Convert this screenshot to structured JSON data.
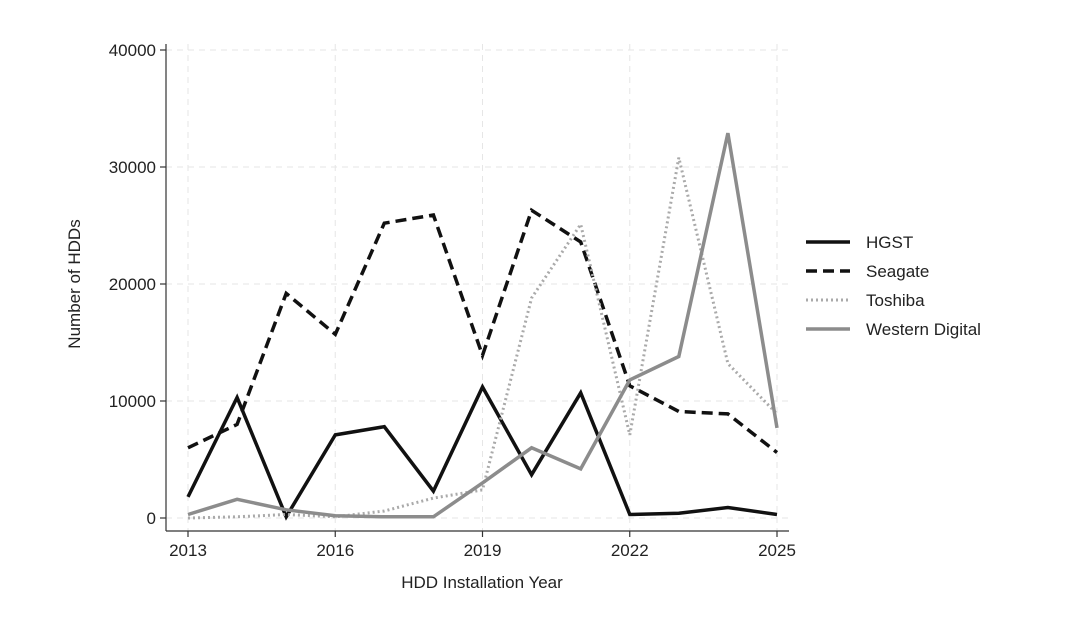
{
  "chart_data": {
    "type": "line",
    "title": "",
    "xlabel": "HDD Installation Year",
    "ylabel": "Number of HDDs",
    "x": [
      2013,
      2014,
      2015,
      2016,
      2017,
      2018,
      2019,
      2020,
      2021,
      2022,
      2023,
      2024,
      2025
    ],
    "xticks": [
      "2013",
      "2016",
      "2019",
      "2022",
      "2025"
    ],
    "yticks": [
      "0",
      "10000",
      "20000",
      "30000",
      "40000"
    ],
    "xlim": [
      2013,
      2025
    ],
    "ylim": [
      0,
      40000
    ],
    "grid": true,
    "legend_position": "right",
    "series": [
      {
        "name": "HGST",
        "color": "#111111",
        "style": "solid",
        "values": [
          1800,
          10300,
          100,
          7100,
          7800,
          2300,
          11200,
          3700,
          10700,
          300,
          400,
          900,
          300
        ]
      },
      {
        "name": "Seagate",
        "color": "#111111",
        "style": "dashed",
        "values": [
          6000,
          8000,
          19200,
          15700,
          25200,
          25900,
          13900,
          26300,
          23600,
          11300,
          9100,
          8900,
          5600
        ]
      },
      {
        "name": "Toshiba",
        "color": "#aaaaaa",
        "style": "dotted",
        "values": [
          0,
          100,
          300,
          100,
          600,
          1700,
          2400,
          18800,
          25100,
          7100,
          30800,
          13200,
          8900
        ]
      },
      {
        "name": "Western Digital",
        "color": "#8c8c8c",
        "style": "solid",
        "values": [
          300,
          1600,
          700,
          200,
          100,
          100,
          3000,
          6000,
          4200,
          11800,
          13800,
          32900,
          7700
        ]
      }
    ]
  }
}
